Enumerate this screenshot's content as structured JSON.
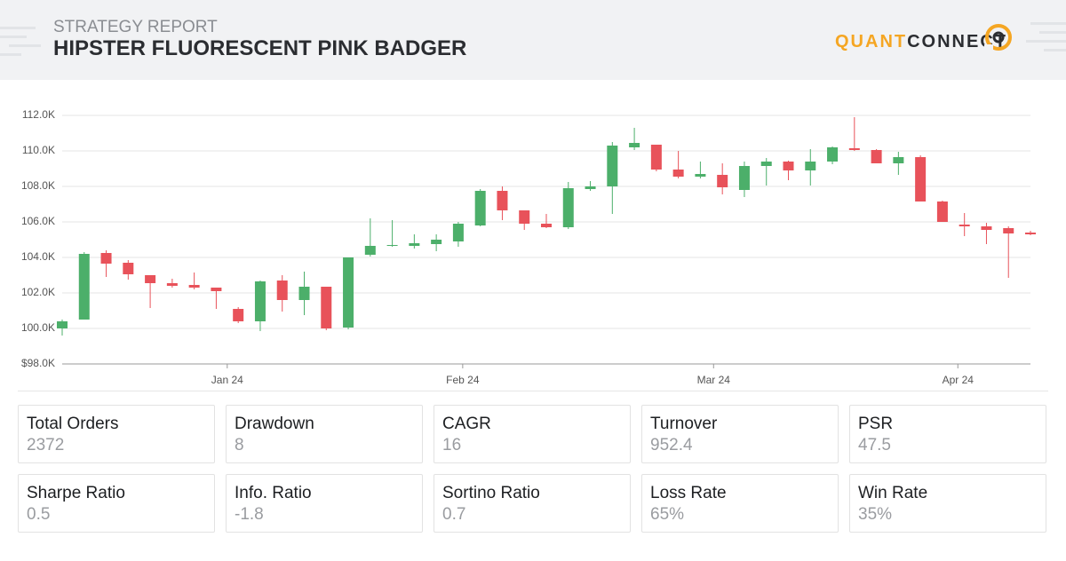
{
  "header": {
    "subtitle": "STRATEGY REPORT",
    "title": "HIPSTER FLUORESCENT PINK BADGER",
    "logo": [
      "QUANT",
      "CONNECT"
    ]
  },
  "chart_data": {
    "type": "candlestick",
    "categories": [
      null,
      null,
      null,
      null,
      null,
      null,
      null,
      null,
      null,
      null,
      null,
      null,
      null,
      null,
      null,
      null,
      null,
      null,
      null,
      null,
      null,
      null,
      null,
      null,
      null,
      null,
      null,
      null,
      null,
      null,
      null,
      null,
      null,
      null,
      null,
      null,
      null,
      null,
      null,
      null,
      null,
      null,
      null,
      null,
      null
    ],
    "open": [
      100000,
      100500,
      104250,
      103700,
      103000,
      102550,
      102450,
      102300,
      101100,
      100400,
      102700,
      101600,
      102350,
      100050,
      104150,
      104650,
      104650,
      104750,
      104900,
      105800,
      107750,
      106650,
      105900,
      105700,
      107850,
      108000,
      110200,
      110350,
      108950,
      108550,
      108650,
      107800,
      109150,
      109400,
      108900,
      109400,
      110150,
      110050,
      109300,
      109650,
      107150,
      105850,
      105750,
      105650,
      105400
    ],
    "high": [
      100500,
      104300,
      104400,
      103850,
      103000,
      102800,
      103150,
      102300,
      101200,
      102700,
      103000,
      103200,
      102350,
      104000,
      106200,
      106100,
      105300,
      105300,
      106000,
      107850,
      108000,
      106650,
      106450,
      108250,
      108300,
      110500,
      111300,
      110350,
      110000,
      109400,
      109300,
      109400,
      109600,
      109450,
      110100,
      110250,
      111900,
      110100,
      109950,
      109750,
      107200,
      106500,
      105950,
      105750,
      105500
    ],
    "low": [
      99600,
      100500,
      102900,
      102750,
      101150,
      102300,
      102200,
      101100,
      100300,
      99850,
      100950,
      100750,
      99900,
      99950,
      104050,
      104600,
      104500,
      104350,
      104600,
      105750,
      106100,
      105550,
      105650,
      105600,
      107750,
      106450,
      110050,
      108850,
      108450,
      108450,
      107550,
      107400,
      108050,
      108350,
      108050,
      109250,
      110000,
      109300,
      108650,
      107150,
      106000,
      105200,
      104750,
      102850,
      105250
    ],
    "close": [
      100400,
      104200,
      103650,
      103050,
      102550,
      102400,
      102300,
      102100,
      100400,
      102650,
      101600,
      102350,
      100000,
      104000,
      104650,
      104700,
      104800,
      105000,
      105900,
      107750,
      106650,
      105900,
      105700,
      107900,
      108000,
      110300,
      110450,
      108950,
      108550,
      108700,
      107950,
      109150,
      109400,
      108900,
      109400,
      110200,
      110050,
      109300,
      109650,
      107150,
      106000,
      105750,
      105550,
      105350,
      105300
    ],
    "up_color": "#4caf6a",
    "down_color": "#e8525a",
    "ylim": [
      98000,
      112000
    ],
    "yticks": [
      {
        "value": 98000,
        "label": "$98.0K"
      },
      {
        "value": 100000,
        "label": "100.0K"
      },
      {
        "value": 102000,
        "label": "102.0K"
      },
      {
        "value": 104000,
        "label": "104.0K"
      },
      {
        "value": 106000,
        "label": "106.0K"
      },
      {
        "value": 108000,
        "label": "108.0K"
      },
      {
        "value": 110000,
        "label": "110.0K"
      },
      {
        "value": 112000,
        "label": "112.0K"
      }
    ],
    "xticks": [
      {
        "value": 7.5,
        "label": "Jan 24"
      },
      {
        "value": 18.2,
        "label": "Feb 24"
      },
      {
        "value": 29.6,
        "label": "Mar 24"
      },
      {
        "value": 40.7,
        "label": "Apr 24"
      }
    ],
    "grid": true
  },
  "stats": [
    {
      "label": "Total Orders",
      "value": "2372"
    },
    {
      "label": "Drawdown",
      "value": "8"
    },
    {
      "label": "CAGR",
      "value": "16"
    },
    {
      "label": "Turnover",
      "value": "952.4"
    },
    {
      "label": "PSR",
      "value": "47.5"
    },
    {
      "label": "Sharpe Ratio",
      "value": "0.5"
    },
    {
      "label": "Info. Ratio",
      "value": "-1.8"
    },
    {
      "label": "Sortino Ratio",
      "value": "0.7"
    },
    {
      "label": "Loss Rate",
      "value": "65%"
    },
    {
      "label": "Win Rate",
      "value": "35%"
    }
  ]
}
